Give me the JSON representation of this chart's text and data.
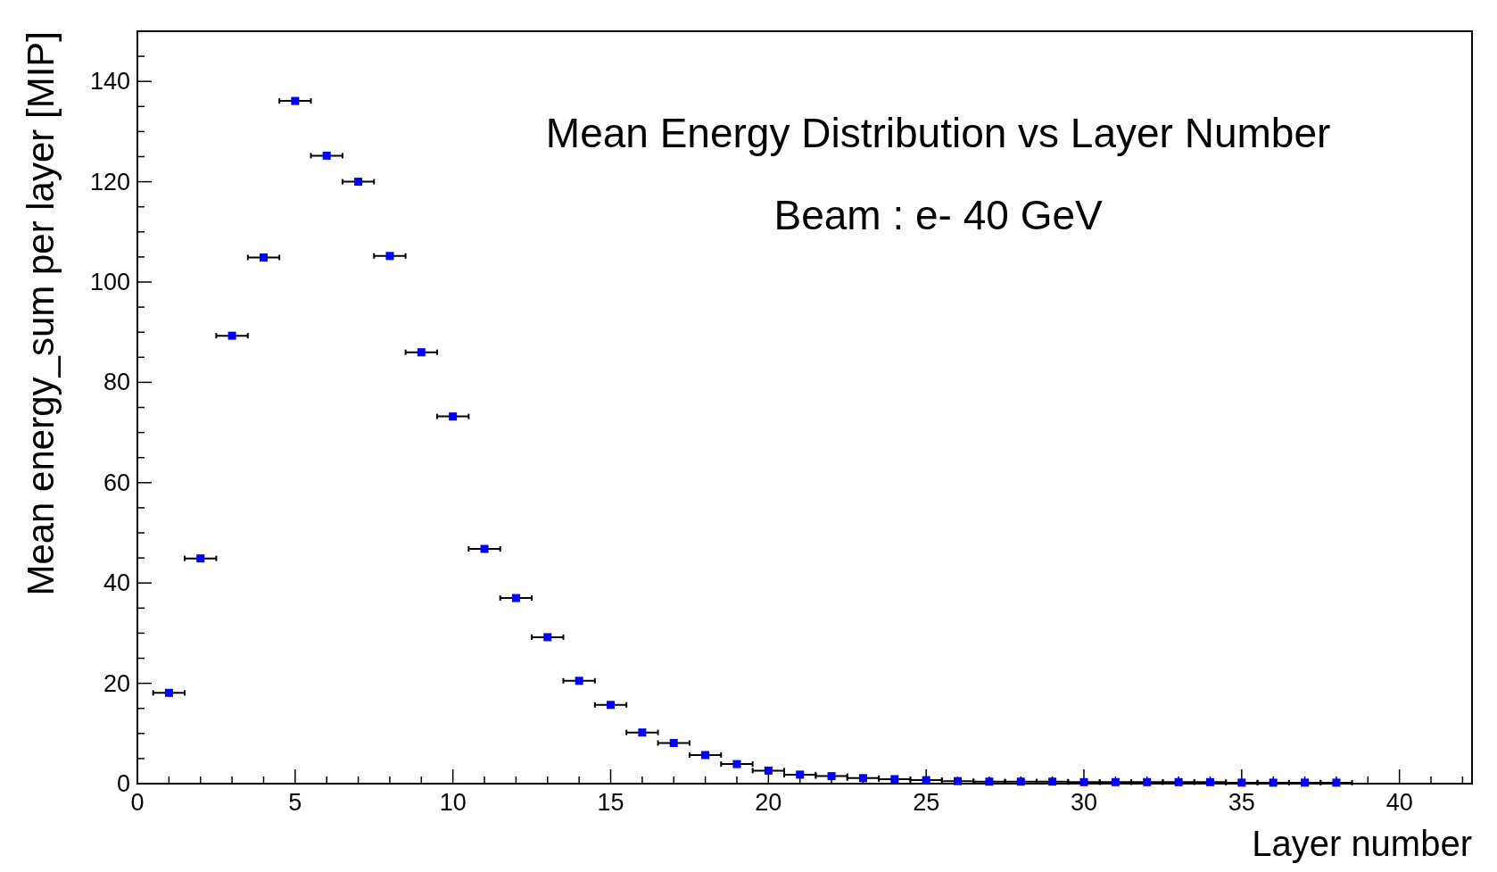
{
  "chart_data": {
    "type": "scatter",
    "title": "Mean Energy Distribution vs Layer Number",
    "subtitle": "Beam : e- 40 GeV",
    "xlabel": "Layer number",
    "ylabel": "Mean energy_sum per layer [MIP]",
    "x": [
      1,
      2,
      3,
      4,
      5,
      6,
      7,
      8,
      9,
      10,
      11,
      12,
      13,
      14,
      15,
      16,
      17,
      18,
      19,
      20,
      21,
      22,
      23,
      24,
      25,
      26,
      27,
      28,
      29,
      30,
      31,
      32,
      33,
      34,
      35,
      36,
      37,
      38
    ],
    "values": [
      18.1,
      44.9,
      89.3,
      104.9,
      136.1,
      125.2,
      120.0,
      105.2,
      86.0,
      73.2,
      46.8,
      37.0,
      29.2,
      20.5,
      15.7,
      10.2,
      8.1,
      5.7,
      3.9,
      2.6,
      1.8,
      1.5,
      1.1,
      0.9,
      0.7,
      0.5,
      0.4,
      0.4,
      0.4,
      0.3,
      0.3,
      0.3,
      0.3,
      0.3,
      0.2,
      0.2,
      0.2,
      0.2
    ],
    "xerrors": [
      0.5,
      0.5,
      0.5,
      0.5,
      0.5,
      0.5,
      0.5,
      0.5,
      0.5,
      0.5,
      0.5,
      0.5,
      0.5,
      0.5,
      0.5,
      0.5,
      0.5,
      0.5,
      0.5,
      0.5,
      0.5,
      0.5,
      0.5,
      0.5,
      0.5,
      0.5,
      0.5,
      0.5,
      0.5,
      0.5,
      0.5,
      0.5,
      0.5,
      0.5,
      0.5,
      0.5,
      0.5,
      0.5
    ],
    "color": "#0000ff",
    "marker": "square",
    "grid": false,
    "xlim": [
      0,
      42.3
    ],
    "xticks": [
      0,
      {
        "value": 1,
        "label": null
      },
      {
        "value": 2,
        "label": null
      },
      {
        "value": 3,
        "label": null
      },
      {
        "value": 4,
        "label": null
      },
      5,
      {
        "value": 6,
        "label": null
      },
      {
        "value": 7,
        "label": null
      },
      {
        "value": 8,
        "label": null
      },
      {
        "value": 9,
        "label": null
      },
      10,
      {
        "value": 11,
        "label": null
      },
      {
        "value": 12,
        "label": null
      },
      {
        "value": 13,
        "label": null
      },
      {
        "value": 14,
        "label": null
      },
      15,
      {
        "value": 16,
        "label": null
      },
      {
        "value": 17,
        "label": null
      },
      {
        "value": 18,
        "label": null
      },
      {
        "value": 19,
        "label": null
      },
      20,
      {
        "value": 21,
        "label": null
      },
      {
        "value": 22,
        "label": null
      },
      {
        "value": 23,
        "label": null
      },
      {
        "value": 24,
        "label": null
      },
      25,
      {
        "value": 26,
        "label": null
      },
      {
        "value": 27,
        "label": null
      },
      {
        "value": 28,
        "label": null
      },
      {
        "value": 29,
        "label": null
      },
      30,
      {
        "value": 31,
        "label": null
      },
      {
        "value": 32,
        "label": null
      },
      {
        "value": 33,
        "label": null
      },
      {
        "value": 34,
        "label": null
      },
      35,
      {
        "value": 36,
        "label": null
      },
      {
        "value": 37,
        "label": null
      },
      {
        "value": 38,
        "label": null
      },
      {
        "value": 39,
        "label": null
      },
      40,
      {
        "value": 41,
        "label": null
      },
      {
        "value": 42,
        "label": null
      }
    ],
    "ylim": [
      0,
      150
    ],
    "yticks": [
      0,
      {
        "value": 5,
        "label": null
      },
      {
        "value": 10,
        "label": null
      },
      {
        "value": 15,
        "label": null
      },
      20,
      {
        "value": 25,
        "label": null
      },
      {
        "value": 30,
        "label": null
      },
      {
        "value": 35,
        "label": null
      },
      40,
      {
        "value": 45,
        "label": null
      },
      {
        "value": 50,
        "label": null
      },
      {
        "value": 55,
        "label": null
      },
      60,
      {
        "value": 65,
        "label": null
      },
      {
        "value": 70,
        "label": null
      },
      {
        "value": 75,
        "label": null
      },
      80,
      {
        "value": 85,
        "label": null
      },
      {
        "value": 90,
        "label": null
      },
      {
        "value": 95,
        "label": null
      },
      100,
      {
        "value": 105,
        "label": null
      },
      {
        "value": 110,
        "label": null
      },
      {
        "value": 115,
        "label": null
      },
      120,
      {
        "value": 125,
        "label": null
      },
      {
        "value": 130,
        "label": null
      },
      {
        "value": 135,
        "label": null
      },
      140,
      {
        "value": 145,
        "label": null
      },
      {
        "value": 150,
        "label": null
      }
    ]
  }
}
